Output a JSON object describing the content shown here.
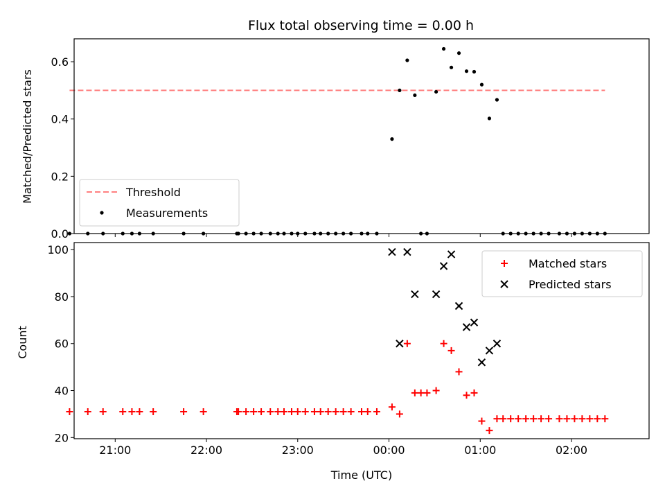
{
  "chart_data": [
    {
      "type": "scatter",
      "title": "Flux total observing time = 0.00 h",
      "xlabel": "",
      "ylabel": "Matched/Predicted stars",
      "xlim": [
        "20:33",
        "02:51"
      ],
      "ylim": [
        0,
        0.68
      ],
      "yticks": [
        0.0,
        0.2,
        0.4,
        0.6
      ],
      "ytick_labels": [
        "0.0",
        "0.2",
        "0.4",
        "0.6"
      ],
      "grid": false,
      "legend_position": "lower-left",
      "series": [
        {
          "name": "Threshold",
          "kind": "dashed-line",
          "color": "#ff7f7f",
          "x": [
            "20:30",
            "02:22"
          ],
          "y": [
            0.5,
            0.5
          ]
        },
        {
          "name": "Measurements",
          "kind": "dots",
          "color": "#000000",
          "points": [
            [
              "20:30",
              0
            ],
            [
              "20:42",
              0
            ],
            [
              "20:52",
              0
            ],
            [
              "21:05",
              0
            ],
            [
              "21:11",
              0
            ],
            [
              "21:16",
              0
            ],
            [
              "21:25",
              0
            ],
            [
              "21:45",
              0
            ],
            [
              "21:58",
              0
            ],
            [
              "22:20",
              0
            ],
            [
              "22:21",
              0
            ],
            [
              "22:26",
              0
            ],
            [
              "22:31",
              0
            ],
            [
              "22:36",
              0
            ],
            [
              "22:42",
              0
            ],
            [
              "22:47",
              0
            ],
            [
              "22:51",
              0
            ],
            [
              "22:56",
              0
            ],
            [
              "23:00",
              0
            ],
            [
              "23:05",
              0
            ],
            [
              "23:11",
              0
            ],
            [
              "23:15",
              0
            ],
            [
              "23:20",
              0
            ],
            [
              "23:25",
              0
            ],
            [
              "23:30",
              0
            ],
            [
              "23:35",
              0
            ],
            [
              "23:42",
              0
            ],
            [
              "23:46",
              0
            ],
            [
              "23:52",
              0
            ],
            [
              "00:02",
              0.33
            ],
            [
              "00:07",
              0.5
            ],
            [
              "00:12",
              0.605
            ],
            [
              "00:17",
              0.483
            ],
            [
              "00:21",
              0
            ],
            [
              "00:25",
              0
            ],
            [
              "00:31",
              0.495
            ],
            [
              "00:36",
              0.645
            ],
            [
              "00:41",
              0.58
            ],
            [
              "00:46",
              0.63
            ],
            [
              "00:51",
              0.567
            ],
            [
              "00:56",
              0.565
            ],
            [
              "01:01",
              0.52
            ],
            [
              "01:06",
              0.402
            ],
            [
              "01:11",
              0.467
            ],
            [
              "01:15",
              0
            ],
            [
              "01:20",
              0
            ],
            [
              "01:25",
              0
            ],
            [
              "01:30",
              0
            ],
            [
              "01:35",
              0
            ],
            [
              "01:40",
              0
            ],
            [
              "01:45",
              0
            ],
            [
              "01:52",
              0
            ],
            [
              "01:57",
              0
            ],
            [
              "02:02",
              0
            ],
            [
              "02:07",
              0
            ],
            [
              "02:12",
              0
            ],
            [
              "02:17",
              0
            ],
            [
              "02:22",
              0
            ]
          ]
        }
      ]
    },
    {
      "type": "scatter",
      "title": "",
      "xlabel": "Time (UTC)",
      "ylabel": "Count",
      "xlim": [
        "20:33",
        "02:51"
      ],
      "ylim": [
        19.5,
        103
      ],
      "xticks": [
        "21:00",
        "22:00",
        "23:00",
        "00:00",
        "01:00",
        "02:00"
      ],
      "yticks": [
        20,
        40,
        60,
        80,
        100
      ],
      "ytick_labels": [
        "20",
        "40",
        "60",
        "80",
        "100"
      ],
      "grid": false,
      "legend_position": "upper-right",
      "series": [
        {
          "name": "Matched stars",
          "marker": "+",
          "color": "#ff0000",
          "points": [
            [
              "20:30",
              31
            ],
            [
              "20:42",
              31
            ],
            [
              "20:52",
              31
            ],
            [
              "21:05",
              31
            ],
            [
              "21:11",
              31
            ],
            [
              "21:16",
              31
            ],
            [
              "21:25",
              31
            ],
            [
              "21:45",
              31
            ],
            [
              "21:58",
              31
            ],
            [
              "22:20",
              31
            ],
            [
              "22:21",
              31
            ],
            [
              "22:26",
              31
            ],
            [
              "22:31",
              31
            ],
            [
              "22:36",
              31
            ],
            [
              "22:42",
              31
            ],
            [
              "22:47",
              31
            ],
            [
              "22:51",
              31
            ],
            [
              "22:56",
              31
            ],
            [
              "23:00",
              31
            ],
            [
              "23:05",
              31
            ],
            [
              "23:11",
              31
            ],
            [
              "23:15",
              31
            ],
            [
              "23:20",
              31
            ],
            [
              "23:25",
              31
            ],
            [
              "23:30",
              31
            ],
            [
              "23:35",
              31
            ],
            [
              "23:42",
              31
            ],
            [
              "23:46",
              31
            ],
            [
              "23:52",
              31
            ],
            [
              "00:02",
              33
            ],
            [
              "00:07",
              30
            ],
            [
              "00:12",
              60
            ],
            [
              "00:17",
              39
            ],
            [
              "00:21",
              39
            ],
            [
              "00:25",
              39
            ],
            [
              "00:31",
              40
            ],
            [
              "00:36",
              60
            ],
            [
              "00:41",
              57
            ],
            [
              "00:46",
              48
            ],
            [
              "00:51",
              38
            ],
            [
              "00:56",
              39
            ],
            [
              "01:01",
              27
            ],
            [
              "01:06",
              23
            ],
            [
              "01:11",
              28
            ],
            [
              "01:15",
              28
            ],
            [
              "01:20",
              28
            ],
            [
              "01:25",
              28
            ],
            [
              "01:30",
              28
            ],
            [
              "01:35",
              28
            ],
            [
              "01:40",
              28
            ],
            [
              "01:45",
              28
            ],
            [
              "01:52",
              28
            ],
            [
              "01:57",
              28
            ],
            [
              "02:02",
              28
            ],
            [
              "02:07",
              28
            ],
            [
              "02:12",
              28
            ],
            [
              "02:17",
              28
            ],
            [
              "02:22",
              28
            ]
          ]
        },
        {
          "name": "Predicted stars",
          "marker": "x",
          "color": "#000000",
          "points": [
            [
              "00:02",
              99
            ],
            [
              "00:07",
              60
            ],
            [
              "00:12",
              99
            ],
            [
              "00:17",
              81
            ],
            [
              "00:31",
              81
            ],
            [
              "00:36",
              93
            ],
            [
              "00:41",
              98
            ],
            [
              "00:46",
              76
            ],
            [
              "00:51",
              67
            ],
            [
              "00:56",
              69
            ],
            [
              "01:01",
              52
            ],
            [
              "01:06",
              57
            ],
            [
              "01:11",
              60
            ]
          ]
        }
      ]
    }
  ]
}
